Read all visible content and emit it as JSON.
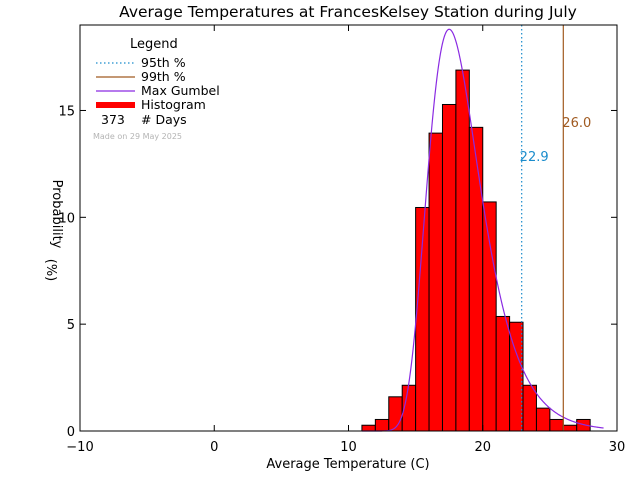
{
  "chart_data": {
    "type": "bar",
    "title": "Average Temperatures at FrancesKelsey Station during July",
    "xlabel": "Average Temperature (C)",
    "ylabel": "Probability",
    "ylabel_unit": "(%)",
    "xlim": [
      -10,
      30
    ],
    "ylim": [
      0,
      19
    ],
    "x_ticks": [
      -10,
      0,
      10,
      20,
      30
    ],
    "y_ticks": [
      0,
      5,
      10,
      15
    ],
    "grid": false,
    "legend_position": "top-left",
    "legend": {
      "title": "Legend",
      "entries": [
        {
          "label": "95th %",
          "style": "dotted",
          "color": "#1a8ccc"
        },
        {
          "label": "99th %",
          "style": "solid",
          "color": "#a05a20"
        },
        {
          "label": "Max Gumbel",
          "style": "solid",
          "color": "#8a2be2"
        },
        {
          "label": "Histogram",
          "style": "thick",
          "color": "#ff0000"
        }
      ],
      "days_count": "373",
      "days_label": "# Days",
      "made_on": "Made on 29 May 2025"
    },
    "histogram": {
      "bin_width": 1,
      "bins": [
        {
          "x0": 11,
          "value": 0.27
        },
        {
          "x0": 12,
          "value": 0.54
        },
        {
          "x0": 13,
          "value": 1.6
        },
        {
          "x0": 14,
          "value": 2.14
        },
        {
          "x0": 15,
          "value": 10.46
        },
        {
          "x0": 16,
          "value": 13.94
        },
        {
          "x0": 17,
          "value": 15.28
        },
        {
          "x0": 18,
          "value": 16.89
        },
        {
          "x0": 19,
          "value": 14.21
        },
        {
          "x0": 20,
          "value": 10.72
        },
        {
          "x0": 21,
          "value": 5.36
        },
        {
          "x0": 22,
          "value": 5.09
        },
        {
          "x0": 23,
          "value": 2.14
        },
        {
          "x0": 24,
          "value": 1.07
        },
        {
          "x0": 25,
          "value": 0.54
        },
        {
          "x0": 26,
          "value": 0.27
        },
        {
          "x0": 27,
          "value": 0.54
        }
      ]
    },
    "gumbel": {
      "mode": 17.5,
      "scale": 1.95,
      "peak": 18.8
    },
    "percentiles": [
      {
        "name": "95th %",
        "value": 22.9,
        "label": "22.9",
        "color": "#1a8ccc",
        "style": "dotted"
      },
      {
        "name": "99th %",
        "value": 26.0,
        "label": "26.0",
        "color": "#a05a20",
        "style": "solid"
      }
    ],
    "colors": {
      "histogram_fill": "#ff0000",
      "histogram_edge": "#000000",
      "gumbel": "#8a2be2",
      "p95": "#1a8ccc",
      "p99": "#a05a20",
      "made_on": "#b4b4b4"
    }
  }
}
